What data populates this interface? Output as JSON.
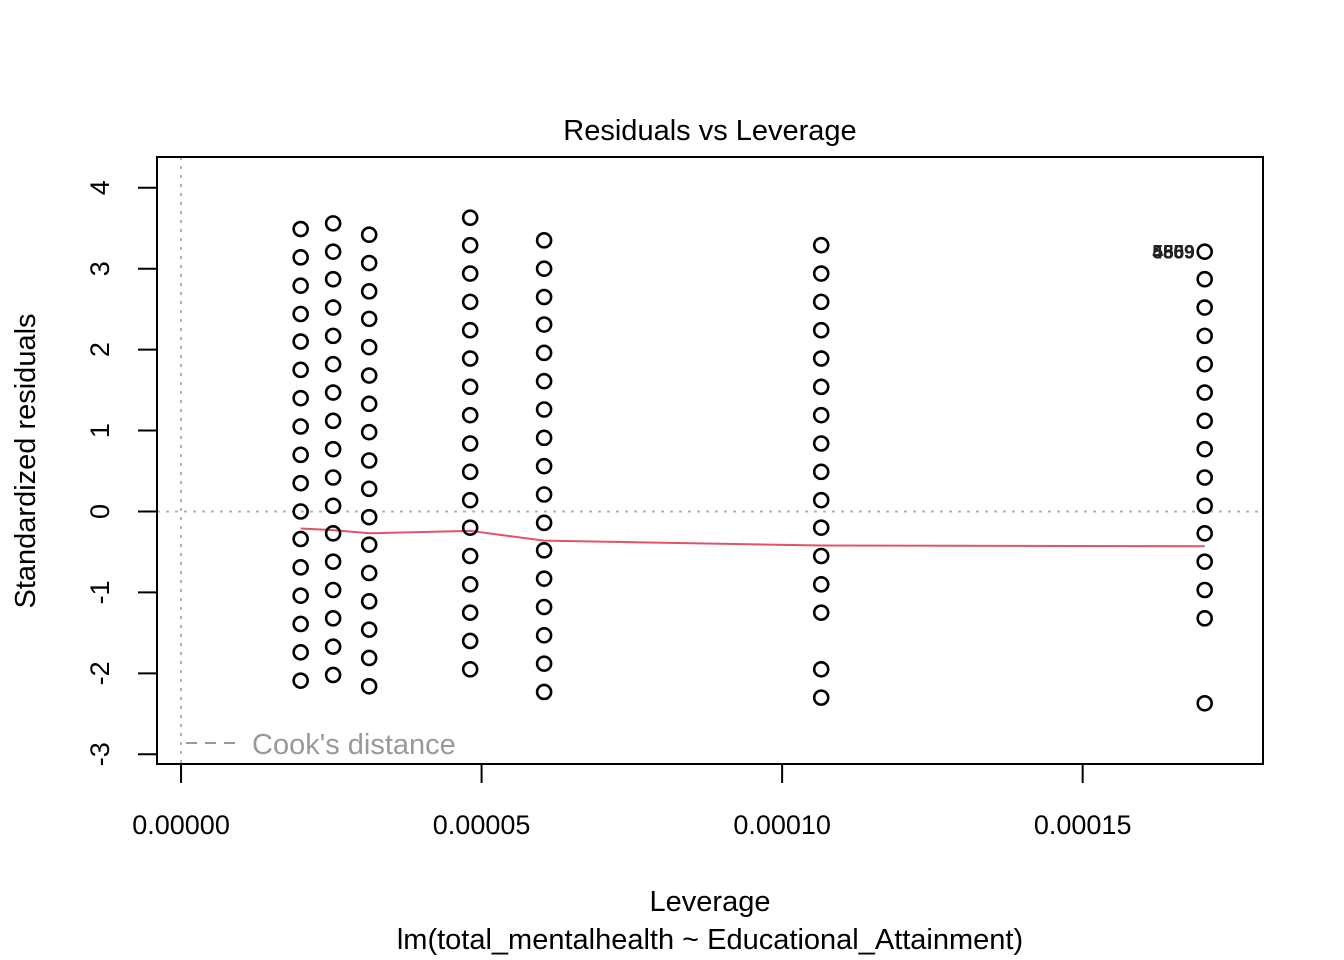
{
  "chart_data": {
    "type": "scatter",
    "title": "Residuals vs Leverage",
    "xlabel": "Leverage",
    "subtitle": "lm(total_mentalhealth ~ Educational_Attainment)",
    "ylabel": "Standardized residuals",
    "xlim": [
      -4e-06,
      0.00018
    ],
    "ylim": [
      -3.12,
      4.38
    ],
    "x_ticks": [
      {
        "value": 0.0,
        "label": "0.00000"
      },
      {
        "value": 5e-05,
        "label": "0.00005"
      },
      {
        "value": 0.0001,
        "label": "0.00010"
      },
      {
        "value": 0.00015,
        "label": "0.00015"
      }
    ],
    "y_ticks": [
      {
        "value": -3,
        "label": "-3"
      },
      {
        "value": -2,
        "label": "-2"
      },
      {
        "value": -1,
        "label": "-1"
      },
      {
        "value": 0,
        "label": "0"
      },
      {
        "value": 1,
        "label": "1"
      },
      {
        "value": 2,
        "label": "2"
      },
      {
        "value": 3,
        "label": "3"
      },
      {
        "value": 4,
        "label": "4"
      }
    ],
    "reference_lines": {
      "h": 0,
      "v": 0
    },
    "point_columns": [
      {
        "x": 1.99e-05,
        "y": [
          -2.09,
          -1.74,
          -1.39,
          -1.04,
          -0.69,
          -0.34,
          0.0,
          0.35,
          0.7,
          1.05,
          1.4,
          1.75,
          2.1,
          2.44,
          2.79,
          3.14,
          3.49
        ]
      },
      {
        "x": 2.53e-05,
        "y": [
          -2.02,
          -1.67,
          -1.32,
          -0.97,
          -0.62,
          -0.27,
          0.07,
          0.42,
          0.77,
          1.12,
          1.47,
          1.82,
          2.17,
          2.52,
          2.87,
          3.21,
          3.56
        ]
      },
      {
        "x": 3.13e-05,
        "y": [
          -2.16,
          -1.81,
          -1.46,
          -1.11,
          -0.76,
          -0.41,
          -0.07,
          0.28,
          0.63,
          0.98,
          1.33,
          1.68,
          2.03,
          2.38,
          2.72,
          3.07,
          3.42
        ]
      },
      {
        "x": 4.81e-05,
        "y": [
          -1.95,
          -1.6,
          -1.25,
          -0.9,
          -0.55,
          -0.2,
          0.14,
          0.49,
          0.84,
          1.19,
          1.54,
          1.89,
          2.24,
          2.59,
          2.94,
          3.29,
          3.63
        ]
      },
      {
        "x": 6.04e-05,
        "y": [
          -2.23,
          -1.88,
          -1.53,
          -1.18,
          -0.83,
          -0.48,
          -0.14,
          0.21,
          0.56,
          0.91,
          1.26,
          1.61,
          1.96,
          2.31,
          2.65,
          3.0,
          3.35
        ]
      },
      {
        "x": 0.0001065,
        "y": [
          -2.3,
          -1.95,
          -1.25,
          -0.9,
          -0.55,
          -0.2,
          0.14,
          0.49,
          0.84,
          1.19,
          1.54,
          1.89,
          2.24,
          2.59,
          2.94,
          3.29
        ]
      },
      {
        "x": 0.0001703,
        "y": [
          -2.37,
          -1.32,
          -0.97,
          -0.62,
          -0.27,
          0.07,
          0.42,
          0.77,
          1.12,
          1.47,
          1.82,
          2.17,
          2.52,
          2.87,
          3.21
        ]
      }
    ],
    "smooth_line": {
      "color": "#DF536B",
      "x": [
        1.99e-05,
        2.53e-05,
        3.13e-05,
        4.81e-05,
        6.04e-05,
        0.0001065,
        0.0001703
      ],
      "y": [
        -0.21,
        -0.23,
        -0.27,
        -0.24,
        -0.36,
        -0.42,
        -0.43
      ]
    },
    "point_labels": [
      {
        "text": "5559",
        "x": 0.0001703,
        "y": 3.21
      },
      {
        "text": "4869",
        "x": 0.0001703,
        "y": 3.21
      },
      {
        "text": "5509",
        "x": 0.0001703,
        "y": 3.21
      }
    ],
    "legend": {
      "text": "Cook's distance",
      "position": "bottom-left",
      "color": "#999999"
    }
  }
}
